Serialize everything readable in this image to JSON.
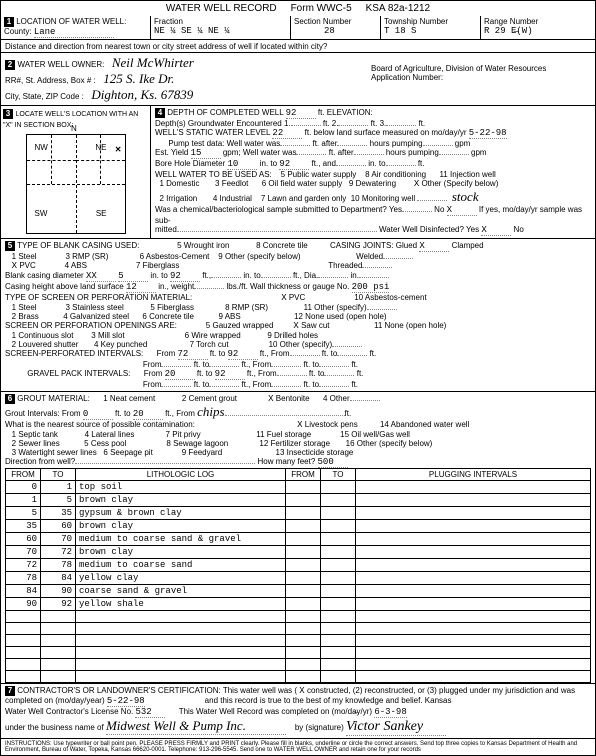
{
  "form": {
    "title": "WATER WELL RECORD",
    "formno": "Form WWC-5",
    "ksa": "KSA 82a-1212"
  },
  "sec1": {
    "label": "LOCATION OF WATER WELL:",
    "countyLabel": "County:",
    "county": "Lane",
    "fractionLabel": "Fraction",
    "fraction": "NE ¼ SE ¼ NE ¼",
    "sectionLabel": "Section Number",
    "section": "28",
    "townshipLabel": "Township Number",
    "township": "T 18 S",
    "rangeLabel": "Range Number",
    "range": "R 29 E̶(W)",
    "distLabel": "Distance and direction from nearest town or city street address of well if located within city?"
  },
  "sec2": {
    "label": "WATER WELL OWNER:",
    "owner": "Neil McWhirter",
    "addrLabel": "RR#, St. Address, Box #   :",
    "addr": "125 S. Ike Dr.",
    "cityLabel": "City, State, ZIP Code     :",
    "city": "Dighton, Ks.  67839",
    "boardLabel": "Board of Agriculture, Division of Water Resources",
    "appLabel": "Application Number:"
  },
  "sec3": {
    "label": "LOCATE WELL'S LOCATION WITH AN \"X\" IN SECTION BOX:"
  },
  "sec4": {
    "label": "DEPTH OF COMPLETED WELL",
    "depth": "92",
    "elevLabel": "ft. ELEVATION:",
    "gwLabel": "Depth(s) Groundwater Encountered",
    "gw1": "1.",
    "gw2": "ft. 2.",
    "gw3": "ft. 3.",
    "gw3end": "ft.",
    "staticLabel": "WELL'S STATIC WATER LEVEL",
    "static": "22",
    "staticAfter": "ft. below land surface measured on mo/day/yr",
    "staticDate": "5-22-98",
    "pumpLabel": "Pump test data:  Well water was",
    "pump1": "ft. after",
    "pump2": "hours pumping",
    "pump3": "gpm",
    "yieldLabel": "Est. Yield",
    "yield": "15",
    "yieldAfter": "gpm;  Well water was",
    "yield1": "ft. after",
    "yield2": "hours pumping",
    "yield3": "gpm",
    "boreLabel": "Bore Hole Diameter",
    "bore1": "10",
    "boreIn": "in. to",
    "bore2": "92",
    "boreFt": "ft., and",
    "boreIn2": "in. to",
    "boreFt2": "ft.",
    "useLabel": "WELL WATER TO BE USED AS:",
    "use1": "1 Domestic",
    "use2": "2 Irrigation",
    "use3": "3 Feedlot",
    "use4": "4 Industrial",
    "use5": "5 Public water supply",
    "use6": "6 Oil field water supply",
    "use7": "7 Lawn and garden only",
    "use8": "8 Air conditioning",
    "use9": "9 Dewatering",
    "use10": "10 Monitoring well",
    "use11": "11 Injection well",
    "use12": "Other (Specify below)",
    "use12x": "X",
    "stock": "stock",
    "chemLabel": "Was a chemical/bacteriological sample submitted to Department?  Yes",
    "chemNo": "No",
    "chemX": "X",
    "chemAfter": "If yes, mo/day/yr sample was sub-",
    "chemMitted": "mitted",
    "disinfLabel": "Water Well Disinfected?  Yes",
    "disinfX": "X",
    "disinfNo": "No"
  },
  "sec5": {
    "label": "TYPE OF BLANK CASING USED:",
    "c1": "1 Steel",
    "c2": "PVC",
    "c2x": "X",
    "c3": "3 RMP (SR)",
    "c4": "4 ABS",
    "c5": "5 Wrought iron",
    "c6": "6 Asbestos-Cement",
    "c7": "7 Fiberglass",
    "c8": "8 Concrete tile",
    "c9": "9 Other (specify below)",
    "jointsLabel": "CASING JOINTS: Glued",
    "jointsX": "X",
    "jointsClamped": "Clamped",
    "diaLabel": "Blank casing diameter",
    "diaXX": "XX",
    "dia": "5",
    "diaIn": "in. to",
    "diaFt": "92",
    "diaFtL": "ft.,",
    "diaIn2": "in. to",
    "diaFt2L": "ft.,  Dia.",
    "jWelded": "Welded",
    "jThreaded": "Threaded",
    "heightLabel": "Casing height above land surface",
    "height": "12",
    "heightIn": "in., weight",
    "heightLbs": "lbs./ft. Wall thickness or gauge No.",
    "gauge": "200  psi",
    "screenLabel": "TYPE OF SCREEN OR PERFORATION MATERIAL:",
    "s1": "1 Steel",
    "s2": "2 Brass",
    "s3": "3 Stainless steel",
    "s4": "4 Galvanized steel",
    "s5": "5 Fiberglass",
    "s6": "6 Concrete tile",
    "s7": "PVC",
    "s7x": "X",
    "s8": "8 RMP (SR)",
    "s9": "9 ABS",
    "s10": "10 Asbestos-cement",
    "s11": "11 Other (specify)",
    "s12": "12 None used (open hole)",
    "openLabel": "SCREEN OR PERFORATION OPENINGS ARE:",
    "o1": "1 Continuous slot",
    "o2": "2 Louvered shutter",
    "o3": "3 Mill slot",
    "o4": "4 Key punched",
    "o5": "5 Gauzed wrapped",
    "o6": "6 Wire wrapped",
    "o7": "7 Torch cut",
    "o8": "Saw cut",
    "o8x": "X",
    "o9": "9 Drilled holes",
    "o10": "10 Other (specify)",
    "o11": "11 None (open hole)",
    "intervalLabel": "SCREEN-PERFORATED INTERVALS:",
    "int1a": "72",
    "int1b": "92",
    "fromL": "From",
    "toL": "ft. to",
    "ftL": "ft., From",
    "ftToL": "ft.",
    "gravelLabel": "GRAVEL PACK INTERVALS:",
    "grav1a": "20",
    "grav1b": "92"
  },
  "sec6": {
    "label": "GROUT MATERIAL:",
    "g1": "1 Neat cement",
    "g2": "2 Cement grout",
    "g3": "Bentonite",
    "g3x": "X",
    "chips": "chips",
    "g4": "4 Other",
    "giLabel": "Grout Intervals:   From",
    "gi1": "0",
    "giTo": "ft. to",
    "gi2": "20",
    "giFt": "ft., From",
    "contamLabel": "What is the nearest source of possible contamination:",
    "co1": "1 Septic tank",
    "co2": "2 Sewer lines",
    "co3": "3 Watertight sewer lines",
    "co4": "4 Lateral lines",
    "co5": "5 Cess pool",
    "co6": "6 Seepage pit",
    "co7": "7 Pit privy",
    "co8": "8 Sewage lagoon",
    "co9": "9 Feedyard",
    "co10": "Livestock pens",
    "co10x": "X",
    "co11": "11 Fuel storage",
    "co12": "12 Fertilizer storage",
    "co13": "13 Insecticide storage",
    "co14": "14 Abandoned water well",
    "co15": "15 Oil well/Gas well",
    "co16": "16 Other (specify below)",
    "dirLabel": "Direction from well?",
    "feetLabel": "How many feet?",
    "feet": "500"
  },
  "lithlog": {
    "headers": [
      "FROM",
      "TO",
      "LITHOLOGIC LOG",
      "FROM",
      "TO",
      "PLUGGING INTERVALS"
    ],
    "rows": [
      [
        "0",
        "1",
        "top soil",
        "",
        "",
        ""
      ],
      [
        "1",
        "5",
        "brown clay",
        "",
        "",
        ""
      ],
      [
        "5",
        "35",
        "gypsum & brown clay",
        "",
        "",
        ""
      ],
      [
        "35",
        "60",
        "brown clay",
        "",
        "",
        ""
      ],
      [
        "60",
        "70",
        "medium to coarse sand & gravel",
        "",
        "",
        ""
      ],
      [
        "70",
        "72",
        "brown clay",
        "",
        "",
        ""
      ],
      [
        "72",
        "78",
        "medium to coarse sand",
        "",
        "",
        ""
      ],
      [
        "78",
        "84",
        "yellow clay",
        "",
        "",
        ""
      ],
      [
        "84",
        "90",
        "coarse sand & gravel",
        "",
        "",
        ""
      ],
      [
        "90",
        "92",
        "yellow shale",
        "",
        "",
        ""
      ],
      [
        "",
        "",
        "",
        "",
        "",
        ""
      ],
      [
        "",
        "",
        "",
        "",
        "",
        ""
      ],
      [
        "",
        "",
        "",
        "",
        "",
        ""
      ],
      [
        "",
        "",
        "",
        "",
        "",
        ""
      ],
      [
        "",
        "",
        "",
        "",
        "",
        ""
      ],
      [
        "",
        "",
        "",
        "",
        "",
        ""
      ]
    ]
  },
  "sec7": {
    "label": "CONTRACTOR'S OR LANDOWNER'S CERTIFICATION:  This water well was  (",
    "x": "X",
    "options": " constructed, (2) reconstructed, or (3) plugged under my jurisdiction and was",
    "completedLabel": "completed on (mo/day/year)",
    "completed": "5-22-98",
    "trueLabel": "and this record is true to the best of my knowledge and belief. Kansas",
    "licLabel": "Water Well Contractor's License No.",
    "lic": "532",
    "recLabel": "This Water Well Record was completed on (mo/da̶y/yr)",
    "recDate": "6-3-98",
    "busLabel": "under the business name of",
    "bus": "Midwest Well & Pump Inc.",
    "sigLabel": "by (signature)",
    "sig": "Victor Sankey"
  },
  "instructions": "INSTRUCTIONS: Use typewriter or ball point pen. PLEASE PRESS FIRMLY and PRINT clearly. Please fill in blanks, underline or circle the correct answers. Send top three copies to Kansas Department of Health and Environment, Bureau of Water, Topeka, Kansas 66620-0001. Telephone: 913-296-5545. Send one to WATER WELL OWNER and retain one for your records"
}
